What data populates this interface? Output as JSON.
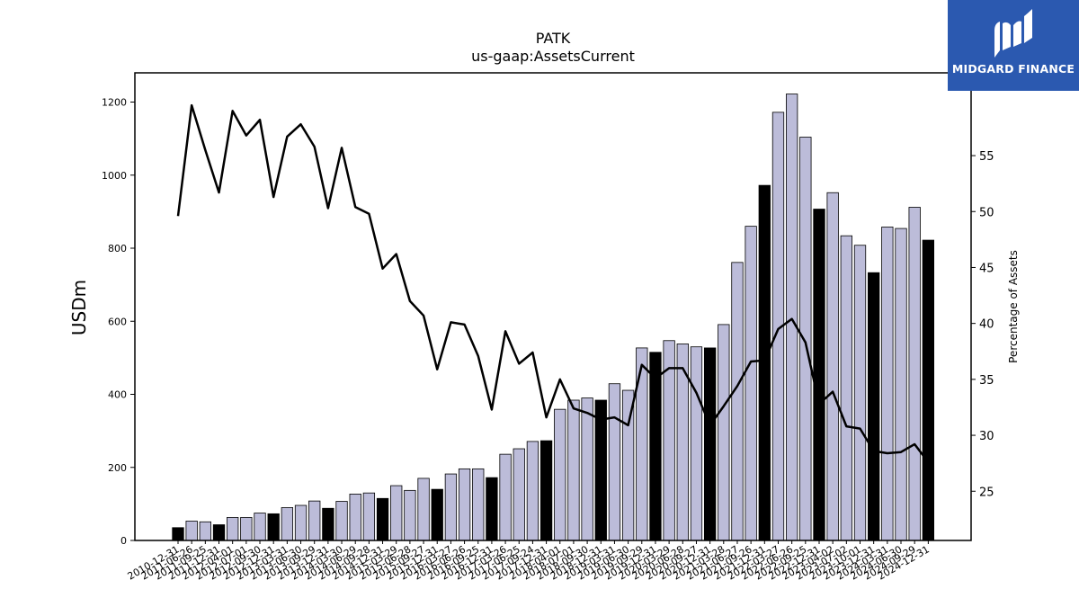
{
  "brand": {
    "name": "MIDGARD FINANCE",
    "bg_color": "#2b59b0"
  },
  "chart_data": {
    "type": "bar",
    "title": "PATK",
    "subtitle": "us-gaap:AssetsCurrent",
    "ylabel": "USDm",
    "y2label": "Percentage of Assets",
    "ylim": [
      0,
      1280
    ],
    "y2lim": [
      20.6,
      62.4
    ],
    "yticks": [
      0,
      200,
      400,
      600,
      800,
      1000,
      1200
    ],
    "y2ticks": [
      25,
      30,
      35,
      40,
      45,
      50,
      55
    ],
    "bar_fill": "#bcbcd9",
    "annual_fill": "#000000",
    "line_color": "#000000",
    "categories": [
      "2010-12-31",
      "2011-06-26",
      "2011-09-25",
      "2011-12-31",
      "2012-04-01",
      "2012-07-01",
      "2012-09-30",
      "2012-12-31",
      "2013-03-31",
      "2013-06-30",
      "2013-09-29",
      "2013-12-31",
      "2014-03-30",
      "2014-06-29",
      "2014-09-28",
      "2014-12-31",
      "2015-03-29",
      "2015-06-28",
      "2015-09-27",
      "2015-12-31",
      "2016-03-27",
      "2016-06-26",
      "2016-09-25",
      "2016-12-31",
      "2017-03-26",
      "2017-06-25",
      "2017-09-24",
      "2017-12-31",
      "2018-04-01",
      "2018-07-01",
      "2018-09-30",
      "2018-12-31",
      "2019-03-31",
      "2019-06-30",
      "2019-09-29",
      "2019-12-31",
      "2020-03-29",
      "2020-06-28",
      "2020-09-27",
      "2020-12-31",
      "2021-03-28",
      "2021-06-27",
      "2021-09-26",
      "2021-12-31",
      "2022-03-27",
      "2022-06-26",
      "2022-09-25",
      "2022-12-31",
      "2023-04-02",
      "2023-07-02",
      "2023-10-01",
      "2023-12-31",
      "2024-03-31",
      "2024-06-30",
      "2024-09-29",
      "2024-12-31"
    ],
    "series": [
      {
        "type": "bar",
        "values": [
          35,
          53,
          51,
          43,
          63,
          63,
          75,
          73,
          90,
          96,
          108,
          88,
          107,
          127,
          130,
          115,
          150,
          137,
          170,
          140,
          182,
          196,
          196,
          172,
          236,
          251,
          271,
          273,
          359,
          384,
          390,
          384,
          429,
          411,
          527,
          515,
          547,
          538,
          530,
          527,
          591,
          761,
          860,
          972,
          1172,
          1222,
          1104,
          907,
          952,
          834,
          808,
          733,
          858,
          854,
          912,
          822
        ],
        "annual": [
          true,
          false,
          false,
          true,
          false,
          false,
          false,
          true,
          false,
          false,
          false,
          true,
          false,
          false,
          false,
          true,
          false,
          false,
          false,
          true,
          false,
          false,
          false,
          true,
          false,
          false,
          false,
          true,
          false,
          false,
          false,
          true,
          false,
          false,
          false,
          true,
          false,
          false,
          false,
          true,
          false,
          false,
          false,
          true,
          false,
          false,
          false,
          true,
          false,
          false,
          false,
          true,
          false,
          false,
          false,
          true
        ]
      },
      {
        "type": "line",
        "axis": "right",
        "values": [
          49.6,
          59.5,
          55.5,
          51.7,
          59.0,
          56.8,
          58.2,
          51.3,
          56.7,
          57.8,
          55.8,
          50.3,
          55.7,
          50.4,
          49.8,
          44.9,
          46.2,
          42.0,
          40.7,
          35.9,
          40.1,
          39.9,
          37.1,
          32.3,
          39.3,
          36.4,
          37.4,
          31.6,
          35.0,
          32.4,
          32.0,
          31.4,
          31.6,
          30.9,
          36.3,
          35.1,
          36.0,
          36.0,
          33.8,
          30.9,
          32.6,
          34.4,
          36.6,
          36.7,
          39.5,
          40.4,
          38.3,
          32.8,
          33.9,
          30.8,
          30.6,
          28.6,
          28.4,
          28.5,
          29.2,
          27.6
        ]
      }
    ]
  }
}
